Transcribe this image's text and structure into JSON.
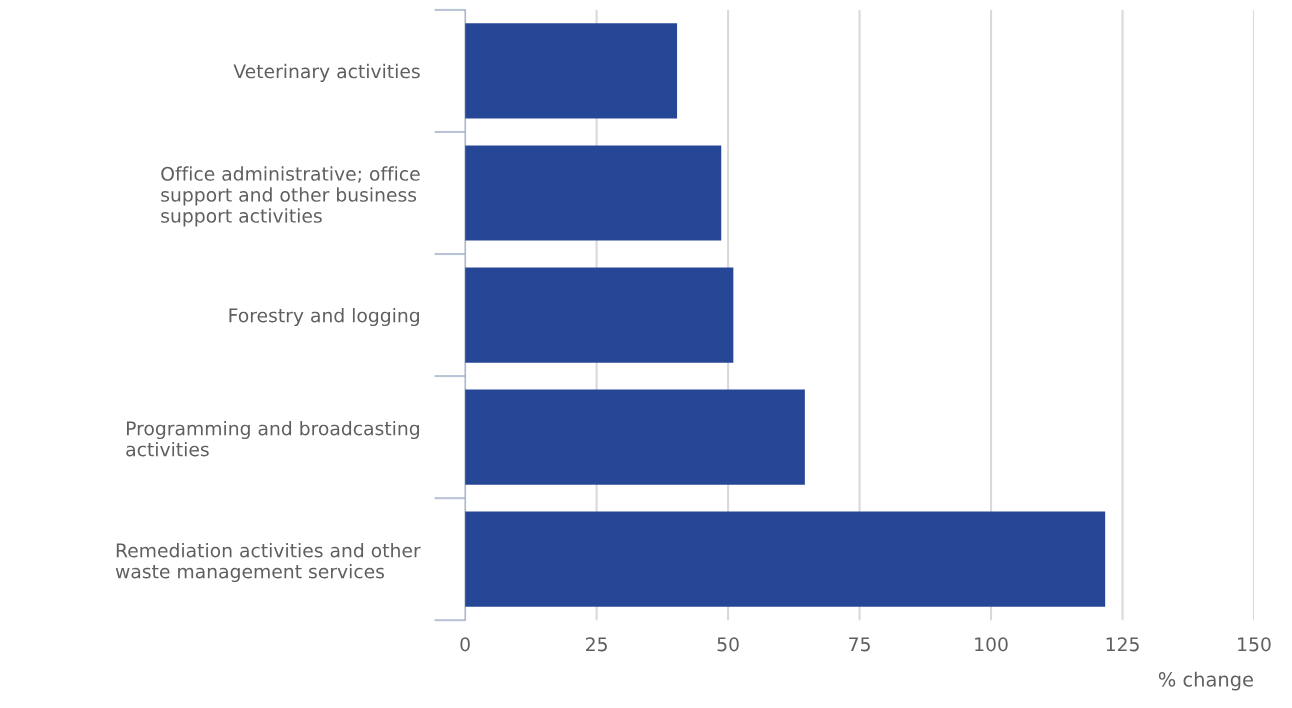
{
  "chart_data": {
    "type": "bar",
    "orientation": "horizontal",
    "xlabel": "% change",
    "categories": [
      "Veterinary activities",
      "Office administrative; office\nsupport and other business\nsupport activities",
      "Forestry and logging",
      "Programming and broadcasting\nactivities",
      "Remediation activities and other\nwaste management services"
    ],
    "values": [
      40.3,
      48.7,
      51.0,
      64.6,
      121.7
    ],
    "color": "#264796",
    "xlim": [
      0,
      150
    ],
    "xticks": [
      0,
      25,
      50,
      75,
      100,
      125,
      150
    ],
    "grid": "x",
    "legend": false
  }
}
